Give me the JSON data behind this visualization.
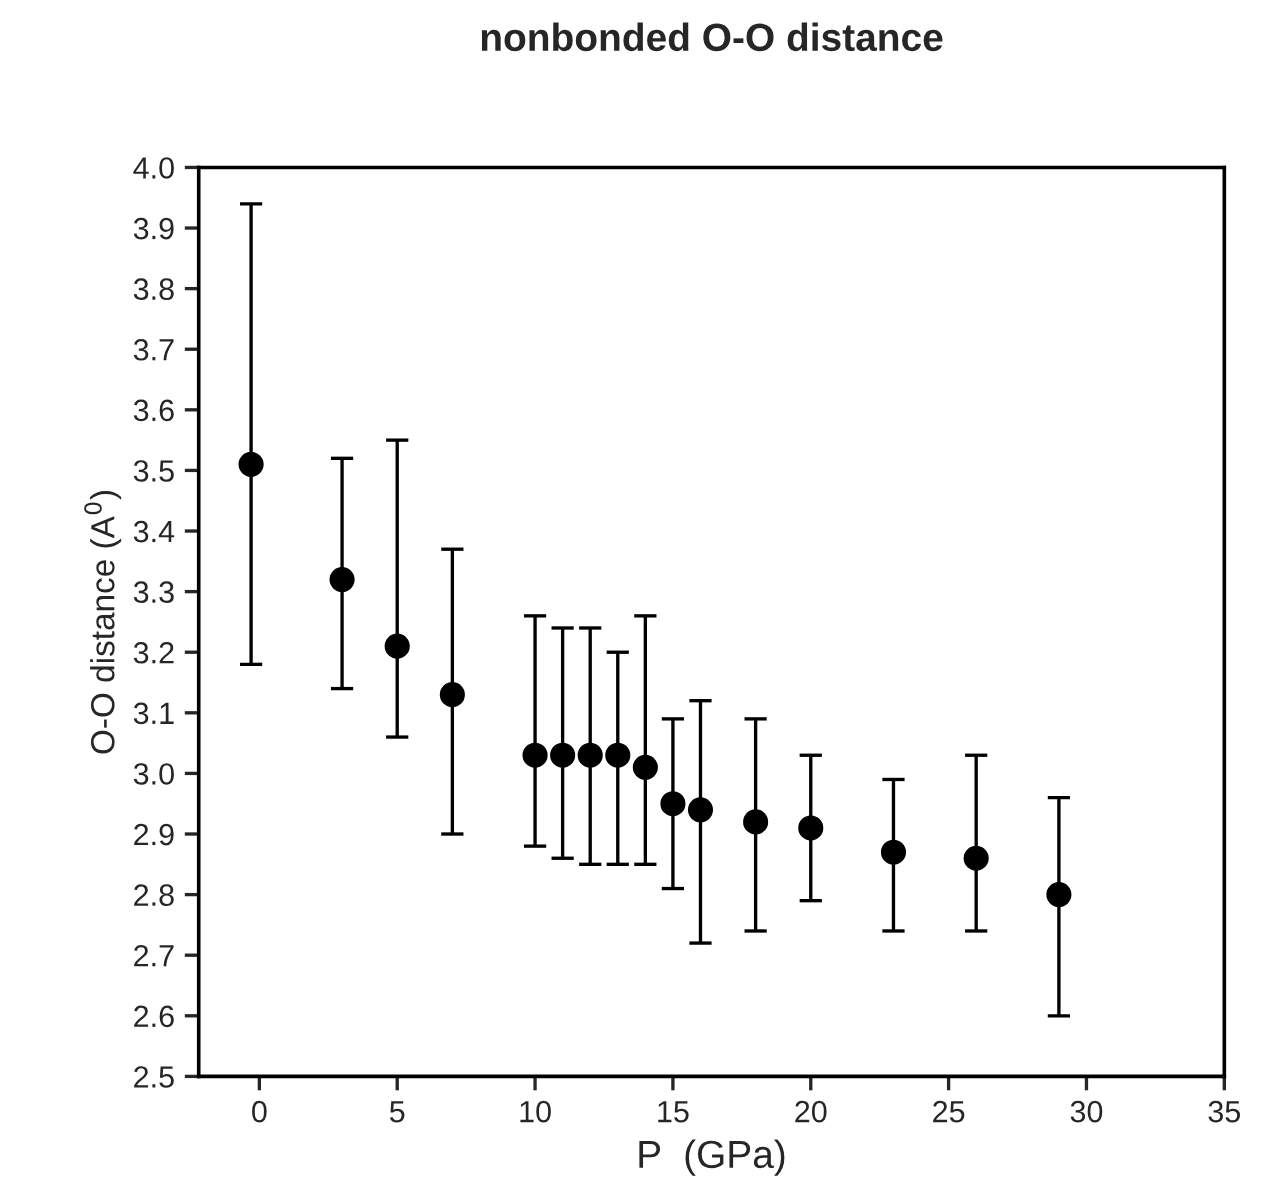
{
  "chart_data": {
    "type": "scatter",
    "title": "nonbonded O-O distance",
    "xlabel": "P  (GPa)",
    "ylabel": "O-O distance (A$^{0}$)",
    "x": [
      -0.3,
      3,
      5,
      7,
      10,
      11,
      12,
      13,
      14,
      15,
      16,
      18,
      20,
      23,
      26,
      29
    ],
    "series": [
      {
        "color": "#000000",
        "values": [
          3.51,
          3.32,
          3.21,
          3.13,
          3.03,
          3.03,
          3.03,
          3.03,
          3.01,
          2.95,
          2.94,
          2.92,
          2.91,
          2.87,
          2.86,
          2.8
        ],
        "errors": [
          [
            3.18,
            3.94
          ],
          [
            3.14,
            3.52
          ],
          [
            3.06,
            3.55
          ],
          [
            2.9,
            3.37
          ],
          [
            2.88,
            3.26
          ],
          [
            2.86,
            3.24
          ],
          [
            2.85,
            3.24
          ],
          [
            2.85,
            3.2
          ],
          [
            2.85,
            3.26
          ],
          [
            2.81,
            3.09
          ],
          [
            2.72,
            3.12
          ],
          [
            2.74,
            3.09
          ],
          [
            2.79,
            3.03
          ],
          [
            2.74,
            2.99
          ],
          [
            2.74,
            3.03
          ],
          [
            2.6,
            2.96
          ]
        ]
      }
    ],
    "marker": "circle",
    "xlim": [
      -2.2,
      35
    ],
    "xticks": [
      0,
      5,
      10,
      15,
      20,
      25,
      30,
      35
    ],
    "ylim": [
      2.5,
      4.0
    ],
    "yticks": [
      {
        "value": 2.5,
        "label": "2.5"
      },
      {
        "value": 2.6,
        "label": "2.6"
      },
      {
        "value": 2.7,
        "label": "2.7"
      },
      {
        "value": 2.8,
        "label": "2.8"
      },
      {
        "value": 2.9,
        "label": "2.9"
      },
      {
        "value": 3.0,
        "label": "3.0"
      },
      {
        "value": 3.1,
        "label": "3.1"
      },
      {
        "value": 3.2,
        "label": "3.2"
      },
      {
        "value": 3.3,
        "label": "3.3"
      },
      {
        "value": 3.4,
        "label": "3.4"
      },
      {
        "value": 3.5,
        "label": "3.5"
      },
      {
        "value": 3.6,
        "label": "3.6"
      },
      {
        "value": 3.7,
        "label": "3.7"
      },
      {
        "value": 3.8,
        "label": "3.8"
      },
      {
        "value": 3.9,
        "label": "3.9"
      },
      {
        "value": 4.0,
        "label": "4.0"
      }
    ],
    "grid": false
  }
}
